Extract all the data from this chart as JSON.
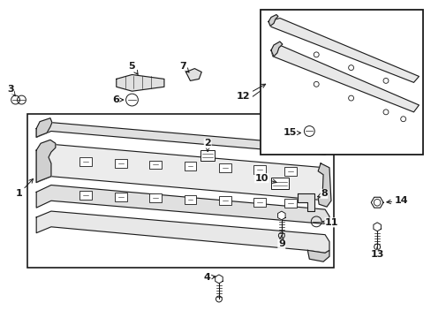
{
  "bg_color": "#ffffff",
  "line_color": "#1a1a1a",
  "figsize": [
    4.89,
    3.6
  ],
  "dpi": 100
}
